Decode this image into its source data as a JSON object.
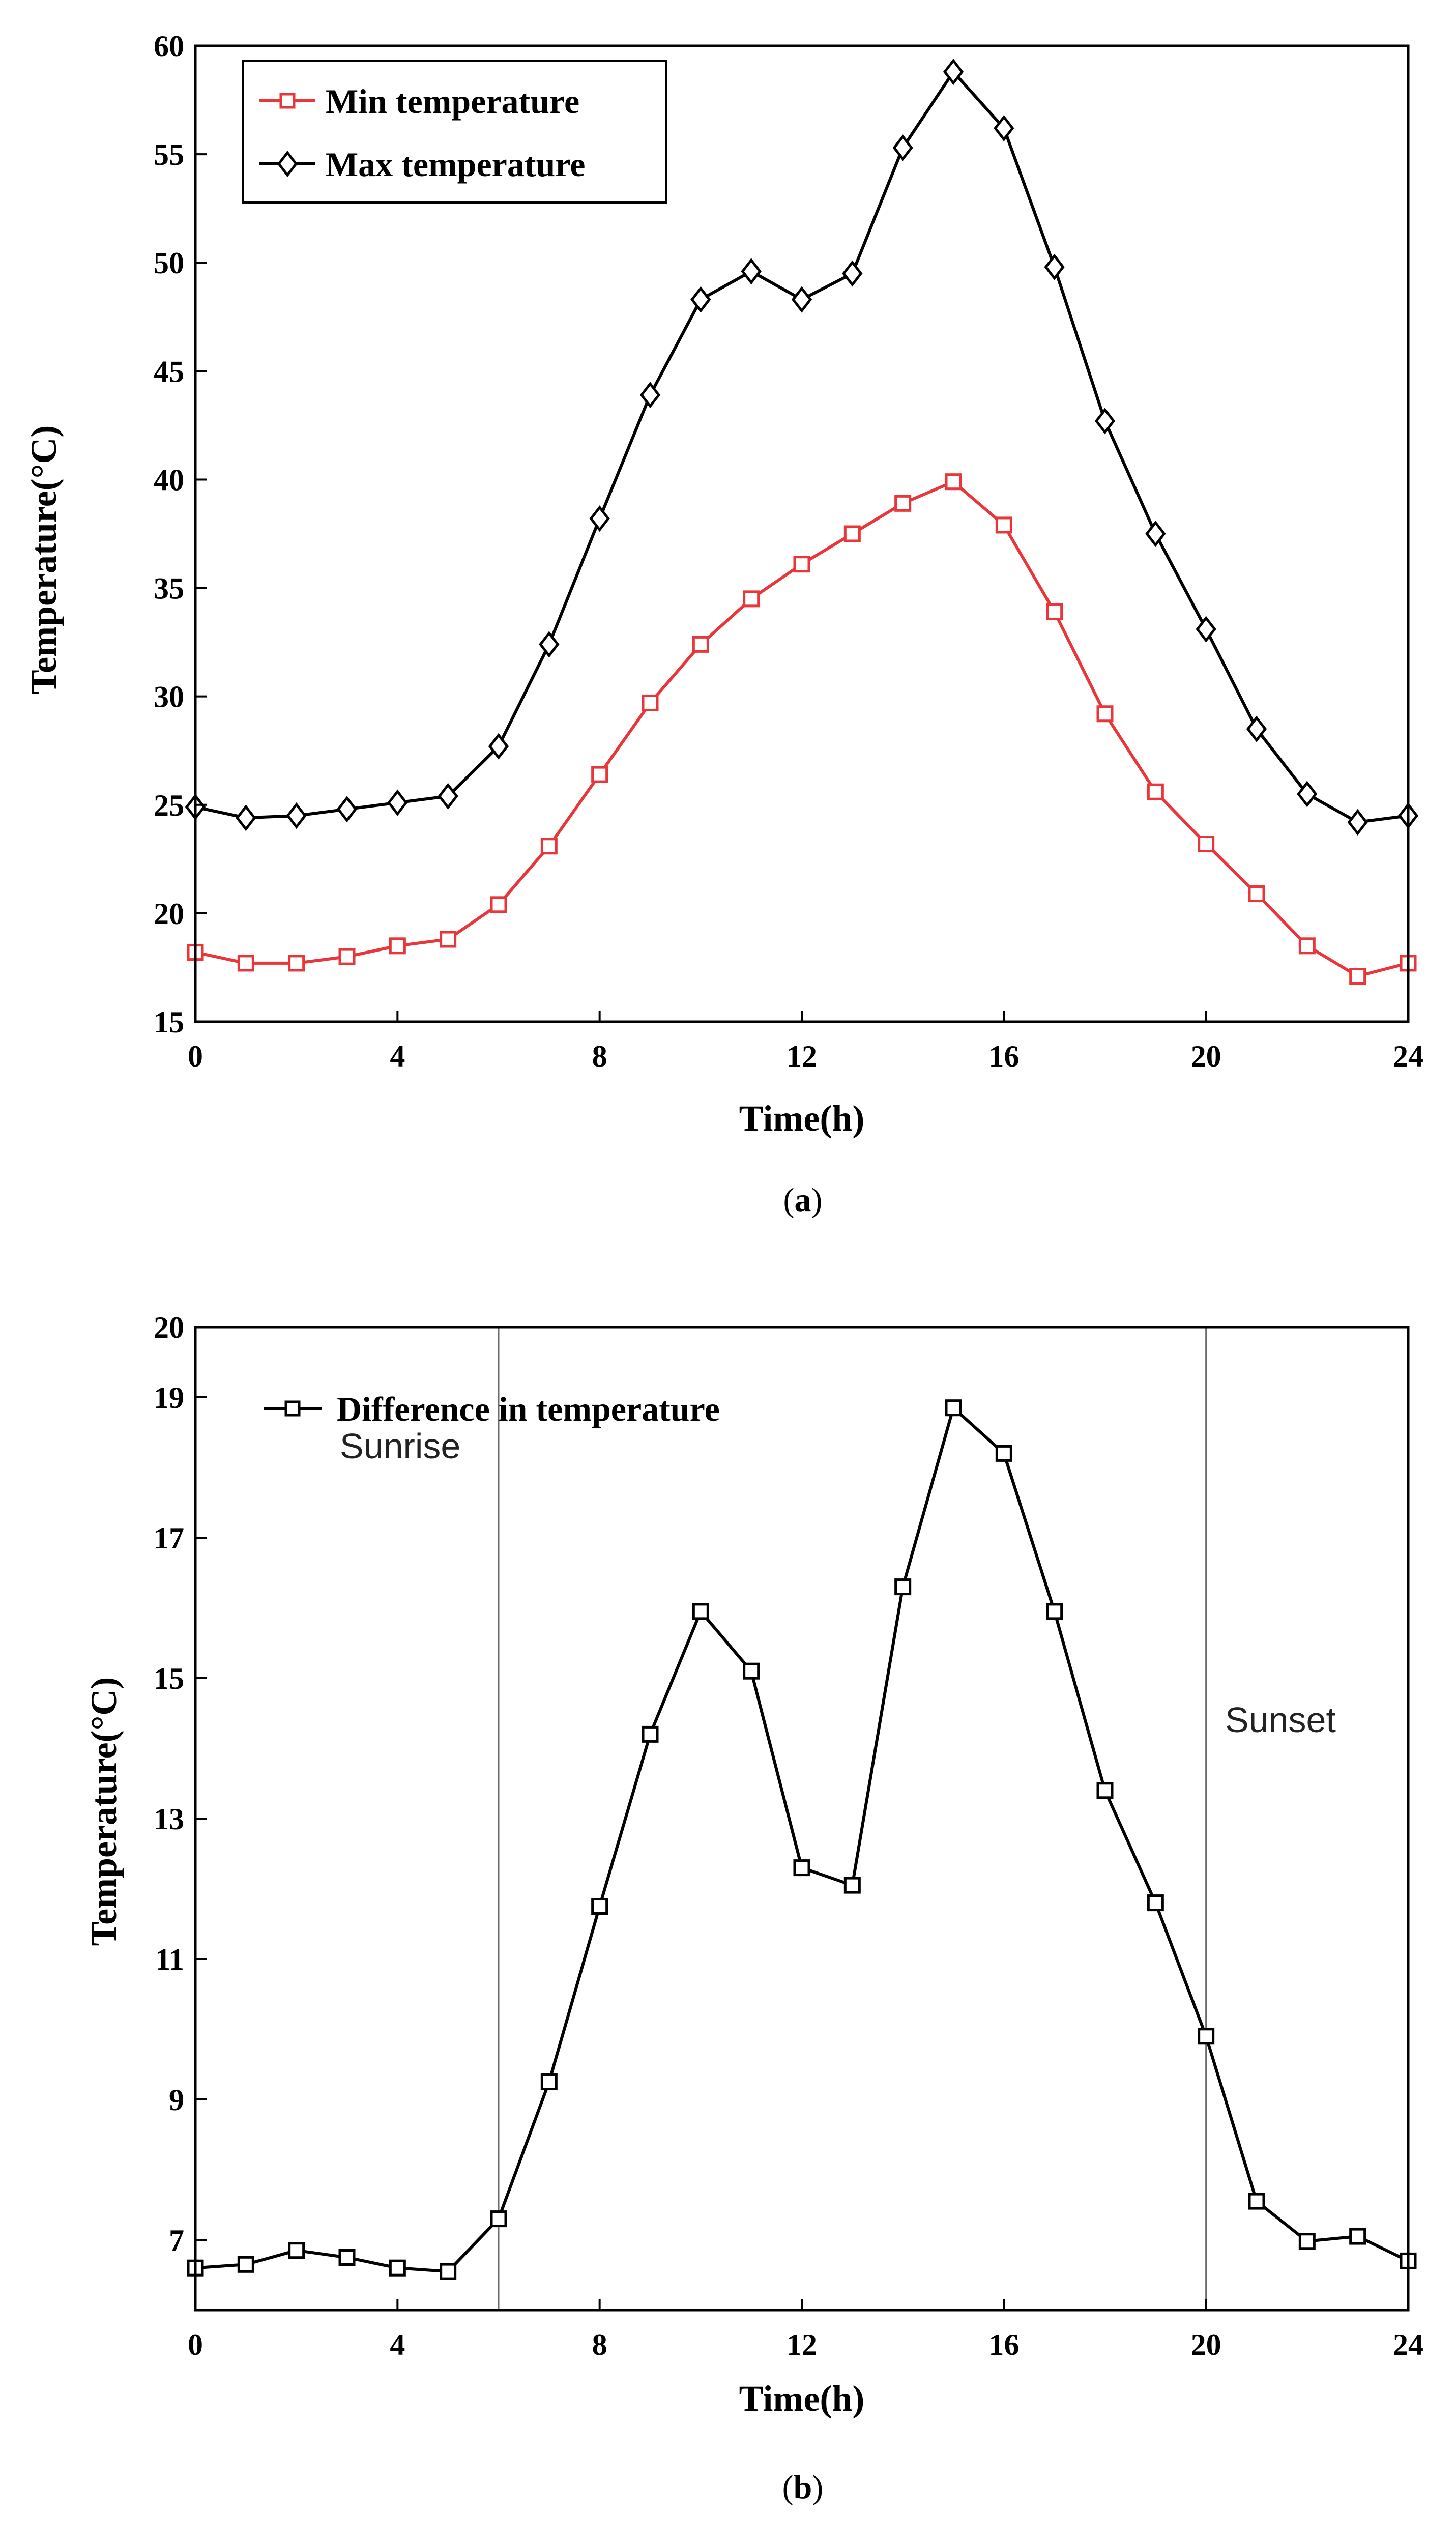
{
  "chart_data": [
    {
      "type": "line",
      "panel_label": "a",
      "title": "",
      "xlabel": "Time(h)",
      "ylabel": "Temperature(°C)",
      "xlim": [
        0,
        24
      ],
      "ylim": [
        15,
        60
      ],
      "xticks": [
        0,
        4,
        8,
        12,
        16,
        20,
        24
      ],
      "yticks": [
        15,
        20,
        25,
        30,
        35,
        40,
        45,
        50,
        55,
        60
      ],
      "grid": false,
      "legend_position": "top-left",
      "x": [
        0,
        1,
        2,
        3,
        4,
        5,
        6,
        7,
        8,
        9,
        10,
        11,
        12,
        13,
        14,
        15,
        16,
        17,
        18,
        19,
        20,
        21,
        22,
        23,
        24
      ],
      "series": [
        {
          "name": "Min temperature",
          "color": "#e8363a",
          "marker": "square",
          "values": [
            18.2,
            17.7,
            17.7,
            18.0,
            18.5,
            18.8,
            20.4,
            23.1,
            26.4,
            29.7,
            32.4,
            34.5,
            36.1,
            37.5,
            38.9,
            39.9,
            37.9,
            33.9,
            29.2,
            25.6,
            23.2,
            20.9,
            18.5,
            17.1,
            17.7
          ]
        },
        {
          "name": "Max temperature",
          "color": "#000000",
          "marker": "diamond",
          "values": [
            24.9,
            24.4,
            24.5,
            24.8,
            25.1,
            25.4,
            27.7,
            32.4,
            38.2,
            43.9,
            48.3,
            49.6,
            48.3,
            49.5,
            55.3,
            58.8,
            56.2,
            49.8,
            42.7,
            37.5,
            33.1,
            28.5,
            25.5,
            24.2,
            24.5
          ]
        }
      ]
    },
    {
      "type": "line",
      "panel_label": "b",
      "title": "",
      "xlabel": "Time(h)",
      "ylabel": "Temperature(°C)",
      "xlim": [
        0,
        24
      ],
      "ylim": [
        6,
        20
      ],
      "xticks": [
        0,
        4,
        8,
        12,
        16,
        20,
        24
      ],
      "yticks": [
        7,
        9,
        11,
        13,
        15,
        17,
        19,
        20
      ],
      "grid": false,
      "legend_position": "top-left",
      "x": [
        0,
        1,
        2,
        3,
        4,
        5,
        6,
        7,
        8,
        9,
        10,
        11,
        12,
        13,
        14,
        15,
        16,
        17,
        18,
        19,
        20,
        21,
        22,
        23,
        24
      ],
      "series": [
        {
          "name": "Difference in temperature",
          "color": "#000000",
          "marker": "square",
          "values": [
            6.6,
            6.65,
            6.85,
            6.75,
            6.6,
            6.55,
            7.3,
            9.25,
            11.75,
            14.2,
            15.95,
            15.1,
            12.3,
            12.05,
            16.3,
            18.85,
            18.2,
            15.95,
            13.4,
            11.8,
            9.9,
            7.55,
            6.98,
            7.05,
            6.7
          ]
        }
      ],
      "annotations": [
        {
          "text": "Sunrise",
          "x": 6
        },
        {
          "text": "Sunset",
          "x": 20
        }
      ]
    }
  ]
}
